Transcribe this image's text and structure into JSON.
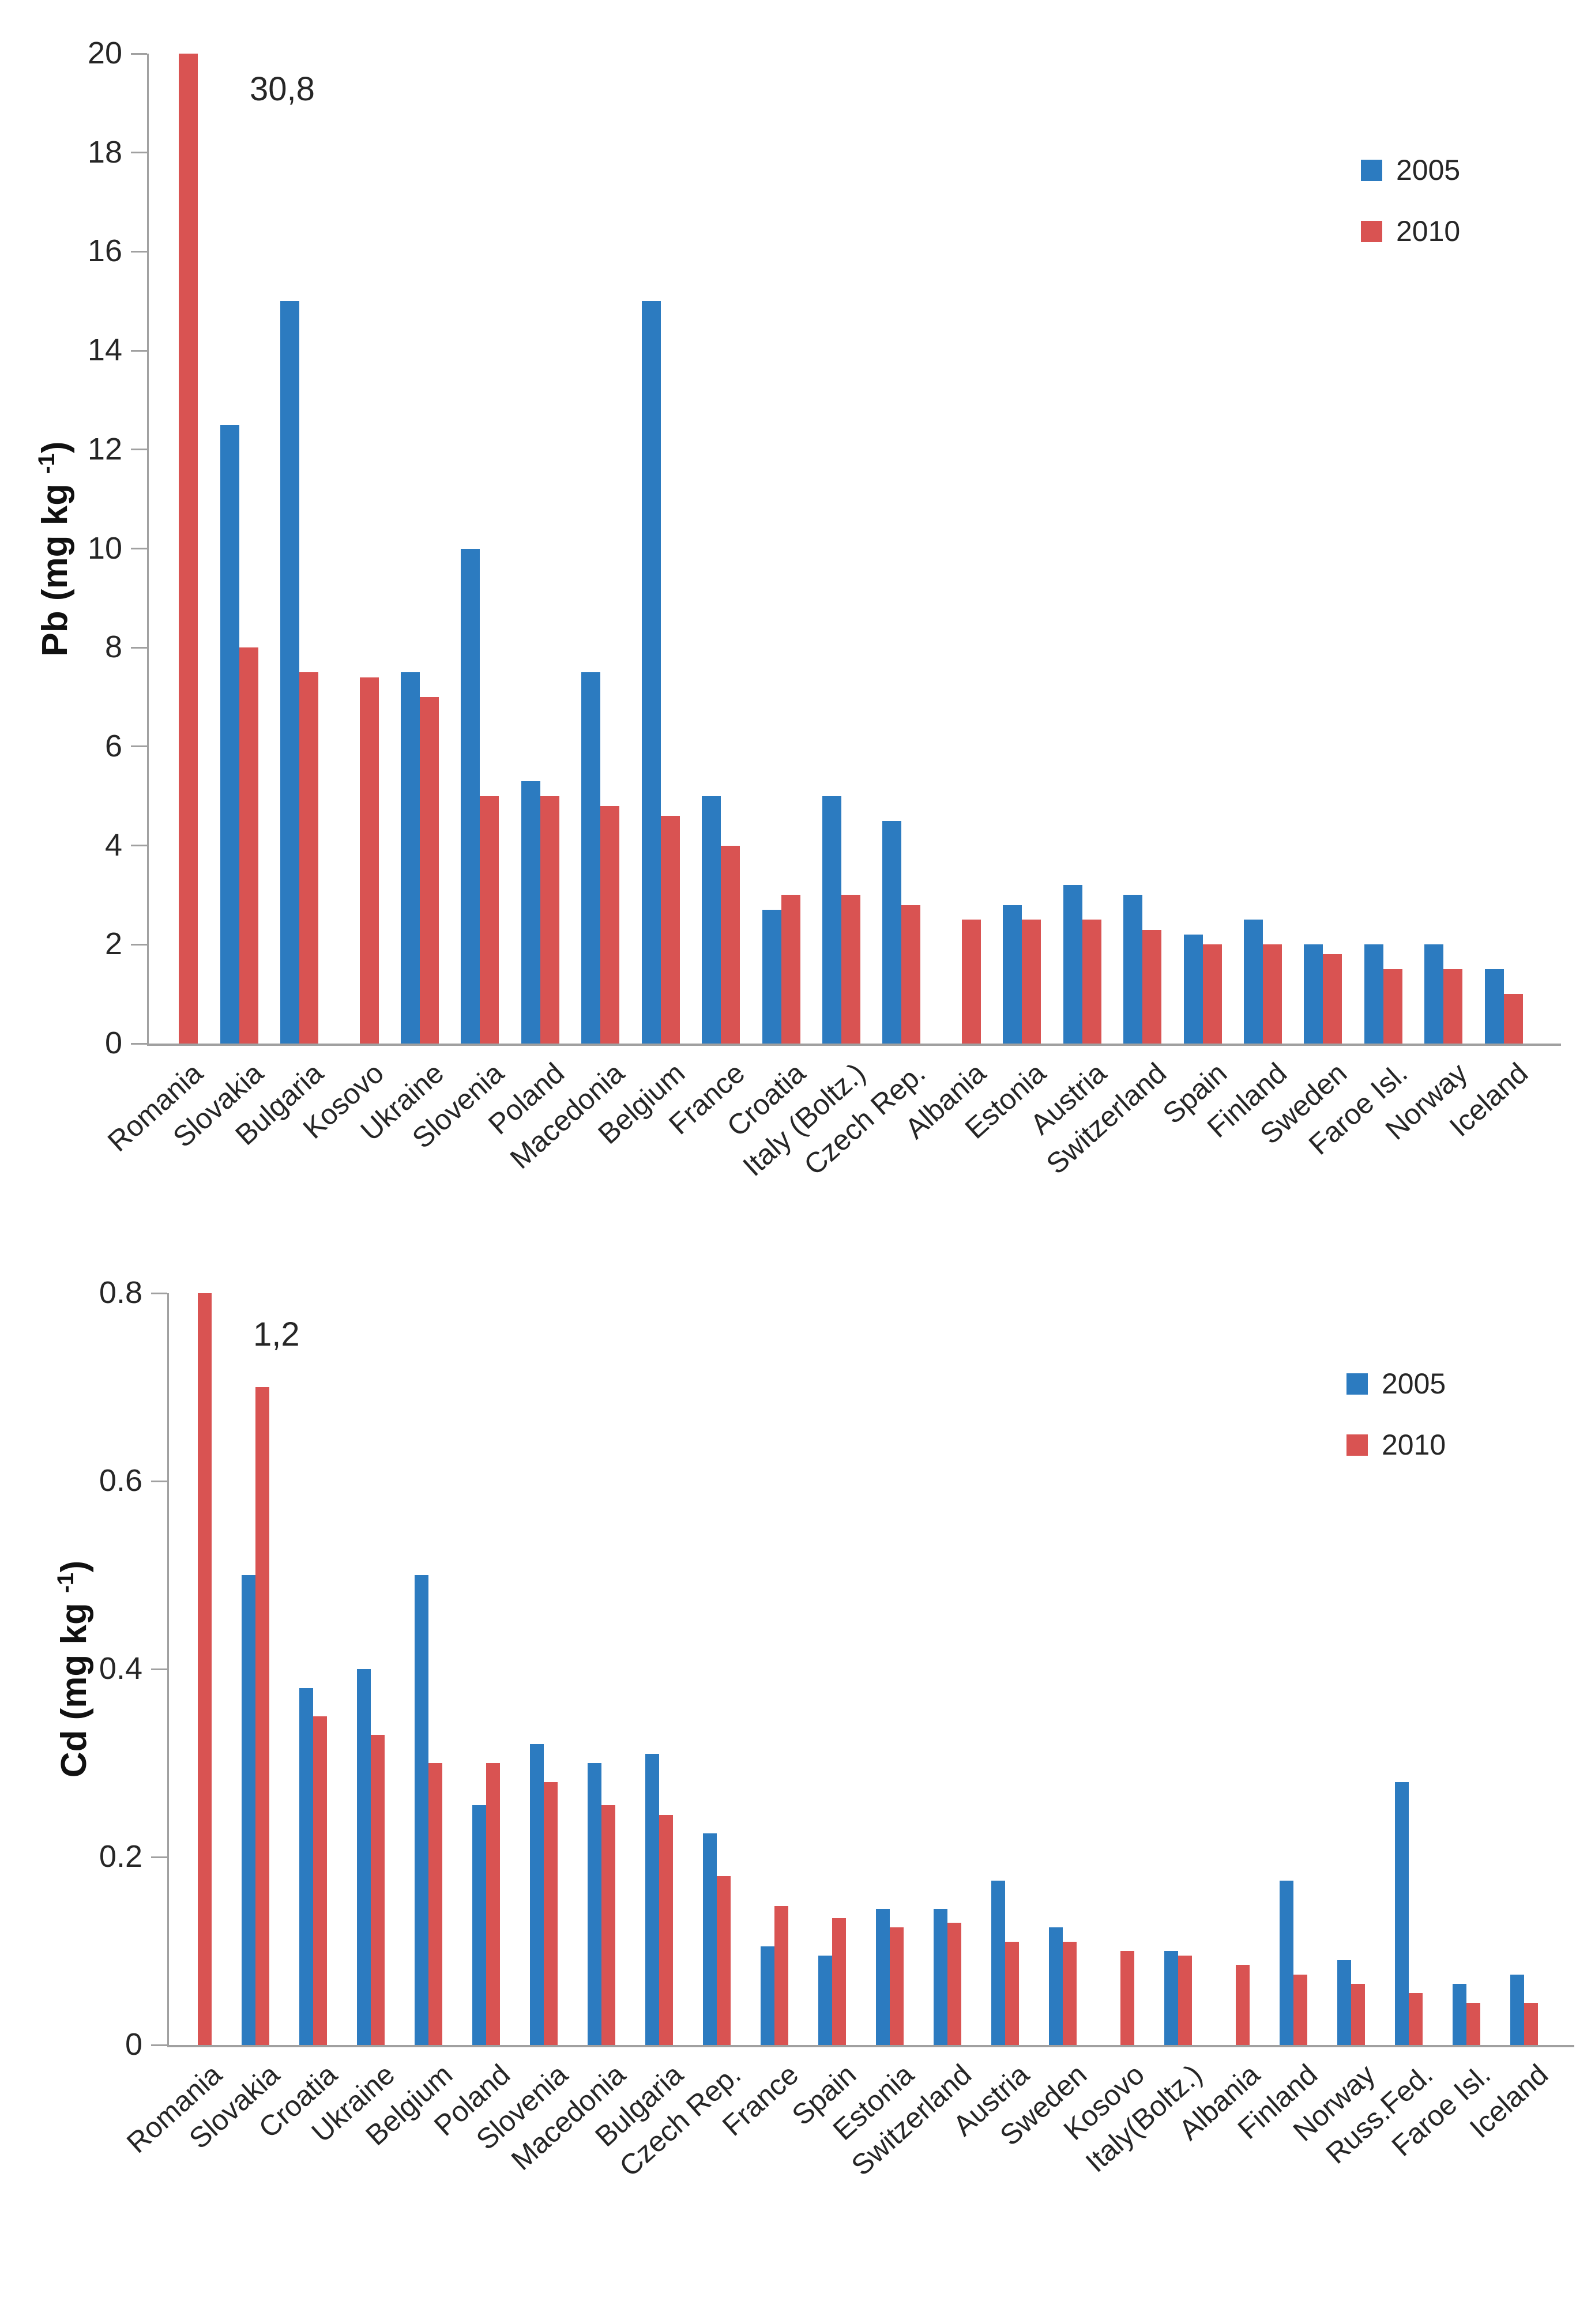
{
  "colors": {
    "series_2005": "#2c7bc0",
    "series_2010": "#d95352",
    "axis": "#a0a0a0",
    "text": "#262626"
  },
  "legend": {
    "items": [
      {
        "label": "2005",
        "color": "#2c7bc0"
      },
      {
        "label": "2010",
        "color": "#d95352"
      }
    ]
  },
  "chart_data": [
    {
      "type": "bar",
      "title": "",
      "ylabel_parts": {
        "prefix": "Pb (mg kg ",
        "sup": "-1",
        "suffix": ")"
      },
      "xlabel": "",
      "ylim": [
        0,
        20
      ],
      "yticks": [
        0,
        2,
        4,
        6,
        8,
        10,
        12,
        14,
        16,
        18,
        20
      ],
      "ytick_labels": [
        "0",
        "2",
        "4",
        "6",
        "8",
        "10",
        "12",
        "14",
        "16",
        "18",
        "20"
      ],
      "grid": false,
      "legend_position": "top-right",
      "categories": [
        "Romania",
        "Slovakia",
        "Bulgaria",
        "Kosovo",
        "Ukraine",
        "Slovenia",
        "Poland",
        "Macedonia",
        "Belgium",
        "France",
        "Croatia",
        "Italy (Boltz.)",
        "Czech Rep.",
        "Albania",
        "Estonia",
        "Austria",
        "Switzerland",
        "Spain",
        "Finland",
        "Sweden",
        "Faroe Isl.",
        "Norway",
        "Iceland"
      ],
      "series": [
        {
          "name": "2005",
          "values": [
            null,
            12.5,
            15,
            null,
            7.5,
            10,
            5.3,
            7.5,
            15,
            5,
            2.7,
            5,
            4.5,
            null,
            2.8,
            3.2,
            3,
            2.2,
            2.5,
            2,
            2,
            2,
            1.5
          ]
        },
        {
          "name": "2010",
          "values": [
            30.8,
            8,
            7.5,
            7.4,
            7,
            5,
            5,
            4.8,
            4.6,
            4,
            3,
            3,
            2.8,
            2.5,
            2.5,
            2.5,
            2.3,
            2,
            2,
            1.8,
            1.5,
            1.5,
            1
          ]
        }
      ],
      "annotation": {
        "text": "30,8",
        "category": "Romania",
        "series": "2010",
        "clipped_at_ymax": true
      }
    },
    {
      "type": "bar",
      "title": "",
      "ylabel_parts": {
        "prefix": "Cd  (mg kg ",
        "sup": "-1",
        "suffix": ")"
      },
      "xlabel": "",
      "ylim": [
        0,
        0.8
      ],
      "yticks": [
        0,
        0.2,
        0.4,
        0.6,
        0.8
      ],
      "ytick_labels": [
        "0",
        "0.2",
        "0.4",
        "0.6",
        "0.8"
      ],
      "grid": false,
      "legend_position": "top-right",
      "categories": [
        "Romania",
        "Slovakia",
        "Croatia",
        "Ukraine",
        "Belgium",
        "Poland",
        "Slovenia",
        "Macedonia",
        "Bulgaria",
        "Czech Rep.",
        "France",
        "Spain",
        "Estonia",
        "Switzerland",
        "Austria",
        "Sweden",
        "Kosovo",
        "Italy(Boltz.)",
        "Albania",
        "Finland",
        "Norway",
        "Russ.Fed.",
        "Faroe Isl.",
        "Iceland"
      ],
      "series": [
        {
          "name": "2005",
          "values": [
            null,
            0.5,
            0.38,
            0.4,
            0.5,
            0.255,
            0.32,
            0.3,
            0.31,
            0.225,
            0.105,
            0.095,
            0.145,
            0.145,
            0.175,
            0.125,
            null,
            0.1,
            null,
            0.175,
            0.09,
            0.28,
            0.065,
            0.075
          ]
        },
        {
          "name": "2010",
          "values": [
            1.2,
            0.7,
            0.35,
            0.33,
            0.3,
            0.3,
            0.28,
            0.255,
            0.245,
            0.18,
            0.148,
            0.135,
            0.125,
            0.13,
            0.11,
            0.11,
            0.1,
            0.095,
            0.085,
            0.075,
            0.065,
            0.055,
            0.045,
            0.045
          ]
        }
      ],
      "annotation": {
        "text": "1,2",
        "category": "Romania",
        "series": "2010",
        "clipped_at_ymax": true
      }
    }
  ]
}
